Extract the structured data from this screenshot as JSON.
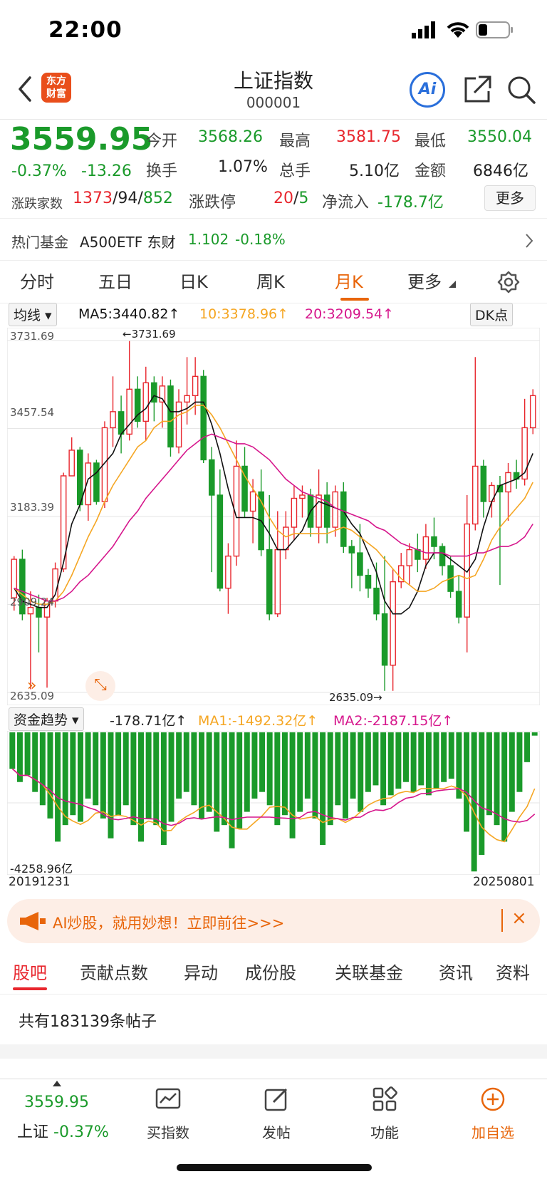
{
  "status_bar": {
    "time": "22:00"
  },
  "nav": {
    "title": "上证指数",
    "code": "000001",
    "logo": [
      "东方",
      "财富"
    ],
    "ai": "Ai"
  },
  "quote": {
    "price": "3559.95",
    "change_pct": "-0.37%",
    "change": "-13.26",
    "open_label": "今开",
    "open": "3568.26",
    "high_label": "最高",
    "high": "3581.75",
    "low_label": "最低",
    "low": "3550.04",
    "turnover_label": "换手",
    "turnover": "1.07%",
    "volume_label": "总手",
    "volume": "5.10亿",
    "amount_label": "金额",
    "amount": "6846亿",
    "breadth_label": "涨跌家数",
    "breadth_up": "1373",
    "breadth_flat": "94",
    "breadth_down": "852",
    "limit_label": "涨跌停",
    "limit_up": "20",
    "limit_down": "5",
    "inflow_label": "净流入",
    "inflow": "-178.7亿",
    "more": "更多"
  },
  "hot_fund": {
    "label": "热门基金",
    "name": "A500ETF 东财",
    "price": "1.102",
    "change": "-0.18%"
  },
  "chart_tabs": [
    "分时",
    "五日",
    "日K",
    "周K",
    "月K",
    "更多"
  ],
  "active_chart_tab": "月K",
  "ma_bar": {
    "selector": "均线",
    "ma5": "MA5:3440.82",
    "ma10": "10:3378.96",
    "ma20": "20:3209.54",
    "dk": "DK点"
  },
  "colors": {
    "up": "#e8262d",
    "down": "#1a9a2a",
    "ma5": "#111111",
    "ma10": "#f5a623",
    "ma20": "#d6168c",
    "accent": "#e8650a"
  },
  "chart_data": {
    "type": "candlestick",
    "y_ticks": [
      "3731.69",
      "3457.54",
      "3183.39",
      "2909.24",
      "2635.09"
    ],
    "ylim": [
      2635.09,
      3731.69
    ],
    "max_marker": "3731.69",
    "min_marker": "2635.09",
    "x_start": "20191231",
    "x_end": "20250801",
    "candles": [
      [
        2930,
        3050,
        2890,
        3060
      ],
      [
        3050,
        2880,
        2860,
        3080
      ],
      [
        2880,
        2900,
        2645,
        2950
      ],
      [
        2900,
        2870,
        2760,
        2940
      ],
      [
        2870,
        2920,
        2650,
        2930
      ],
      [
        2920,
        3020,
        2900,
        3040
      ],
      [
        3020,
        3310,
        3010,
        3320
      ],
      [
        3310,
        3390,
        3320,
        3430
      ],
      [
        3390,
        3220,
        3200,
        3400
      ],
      [
        3220,
        3350,
        3170,
        3380
      ],
      [
        3350,
        3230,
        3220,
        3360
      ],
      [
        3230,
        3460,
        3210,
        3480
      ],
      [
        3460,
        3510,
        3400,
        3620
      ],
      [
        3510,
        3440,
        3380,
        3560
      ],
      [
        3440,
        3580,
        3420,
        3730
      ],
      [
        3580,
        3480,
        3460,
        3620
      ],
      [
        3480,
        3600,
        3420,
        3650
      ],
      [
        3600,
        3540,
        3480,
        3620
      ],
      [
        3540,
        3590,
        3460,
        3620
      ],
      [
        3590,
        3400,
        3370,
        3610
      ],
      [
        3400,
        3540,
        3380,
        3580
      ],
      [
        3540,
        3560,
        3470,
        3680
      ],
      [
        3560,
        3620,
        3500,
        3680
      ],
      [
        3620,
        3360,
        3350,
        3640
      ],
      [
        3360,
        3250,
        3010,
        3400
      ],
      [
        3250,
        2960,
        2950,
        3330
      ],
      [
        2960,
        3060,
        2880,
        3100
      ],
      [
        3060,
        3340,
        3030,
        3420
      ],
      [
        3340,
        3200,
        3180,
        3400
      ],
      [
        3200,
        3260,
        3100,
        3300
      ],
      [
        3260,
        3080,
        3060,
        3330
      ],
      [
        3080,
        2880,
        2860,
        3250
      ],
      [
        2880,
        3080,
        2870,
        3200
      ],
      [
        3080,
        3150,
        3050,
        3200
      ],
      [
        3150,
        3240,
        3110,
        3280
      ],
      [
        3240,
        3250,
        3180,
        3280
      ],
      [
        3250,
        3150,
        3120,
        3270
      ],
      [
        3150,
        3250,
        3100,
        3330
      ],
      [
        3250,
        3150,
        3100,
        3290
      ],
      [
        3150,
        3260,
        3120,
        3280
      ],
      [
        3260,
        3090,
        3070,
        3290
      ],
      [
        3090,
        3070,
        2960,
        3110
      ],
      [
        3070,
        3000,
        2950,
        3160
      ],
      [
        3000,
        2960,
        2930,
        3020
      ],
      [
        2960,
        2880,
        2860,
        3040
      ],
      [
        2880,
        2720,
        2640,
        3060
      ],
      [
        2720,
        2980,
        2640,
        3020
      ],
      [
        2980,
        3030,
        2960,
        3070
      ],
      [
        3030,
        3080,
        2970,
        3100
      ],
      [
        3080,
        3050,
        3010,
        3130
      ],
      [
        3050,
        3120,
        3020,
        3160
      ],
      [
        3120,
        3090,
        3050,
        3180
      ],
      [
        3090,
        3030,
        3000,
        3100
      ],
      [
        3030,
        2950,
        2930,
        3060
      ],
      [
        2950,
        2870,
        2850,
        3000
      ],
      [
        2870,
        3160,
        2760,
        3250
      ],
      [
        3160,
        3340,
        3140,
        3680
      ],
      [
        3340,
        3230,
        3180,
        3360
      ],
      [
        3230,
        3280,
        3180,
        3290
      ],
      [
        3280,
        3260,
        2970,
        3310
      ],
      [
        3260,
        3320,
        3170,
        3350
      ],
      [
        3320,
        3300,
        3270,
        3360
      ],
      [
        3300,
        3460,
        3280,
        3550
      ],
      [
        3460,
        3560,
        3440,
        3580
      ]
    ],
    "series": [
      {
        "name": "MA5",
        "values": [
          2960,
          2920,
          2910,
          2900,
          2900,
          2940,
          3040,
          3160,
          3220,
          3300,
          3320,
          3350,
          3380,
          3440,
          3470,
          3500,
          3520,
          3560,
          3550,
          3510,
          3510,
          3520,
          3540,
          3540,
          3470,
          3380,
          3270,
          3180,
          3180,
          3180,
          3170,
          3130,
          3080,
          3080,
          3110,
          3140,
          3200,
          3230,
          3220,
          3210,
          3200,
          3160,
          3130,
          3070,
          3010,
          2920,
          2880,
          2880,
          2900,
          2950,
          3030,
          3070,
          3070,
          3050,
          3030,
          3010,
          3050,
          3150,
          3230,
          3280,
          3290,
          3300,
          3320,
          3380
        ]
      },
      {
        "name": "MA10",
        "values": [
          2960,
          2940,
          2920,
          2910,
          2910,
          2920,
          2950,
          3000,
          3060,
          3120,
          3170,
          3230,
          3280,
          3320,
          3360,
          3400,
          3420,
          3460,
          3480,
          3480,
          3500,
          3510,
          3530,
          3530,
          3500,
          3460,
          3410,
          3360,
          3310,
          3270,
          3230,
          3180,
          3140,
          3120,
          3130,
          3130,
          3130,
          3130,
          3130,
          3140,
          3150,
          3140,
          3120,
          3100,
          3080,
          3050,
          3020,
          2990,
          2970,
          2950,
          2950,
          2960,
          2980,
          2990,
          3000,
          2990,
          3000,
          3050,
          3110,
          3150,
          3180,
          3210,
          3240,
          3290
        ]
      },
      {
        "name": "MA20",
        "values": [
          2960,
          2950,
          2940,
          2930,
          2920,
          2920,
          2930,
          2950,
          2980,
          3000,
          3030,
          3060,
          3090,
          3130,
          3170,
          3200,
          3240,
          3270,
          3300,
          3330,
          3360,
          3390,
          3410,
          3430,
          3440,
          3430,
          3420,
          3410,
          3410,
          3400,
          3380,
          3360,
          3330,
          3300,
          3280,
          3260,
          3250,
          3240,
          3230,
          3210,
          3200,
          3190,
          3180,
          3170,
          3150,
          3140,
          3120,
          3100,
          3090,
          3080,
          3070,
          3070,
          3070,
          3060,
          3060,
          3060,
          3070,
          3070,
          3080,
          3090,
          3090,
          3100,
          3120,
          3160
        ]
      }
    ]
  },
  "fund_flow": {
    "selector": "资金趋势",
    "value": "-178.71亿",
    "ma1": "MA1:-1492.32亿",
    "ma2": "MA2:-2187.15亿",
    "min_label": "-4258.96亿",
    "bars": [
      -1100,
      -1500,
      -1300,
      -1800,
      -2200,
      -2600,
      -3300,
      -2800,
      -2500,
      -2700,
      -2000,
      -2200,
      -2600,
      -3200,
      -2500,
      -2200,
      -2800,
      -3300,
      -2600,
      -2800,
      -3400,
      -2700,
      -2000,
      -1800,
      -2200,
      -2600,
      -2400,
      -3000,
      -2800,
      -3500,
      -2900,
      -2400,
      -2000,
      -1800,
      -2200,
      -2800,
      -2500,
      -3200,
      -2400,
      -2000,
      -2600,
      -3400,
      -2800,
      -2200,
      -2600,
      -2000,
      -2400,
      -1800,
      -1600,
      -2200,
      -1900,
      -1700,
      -1500,
      -1800,
      -1600,
      -1900,
      -1700,
      -1500,
      -1400,
      -2000,
      -3000,
      -4200,
      -3700,
      -2500,
      -2800,
      -3300,
      -2400,
      -1800,
      -900,
      -100
    ]
  },
  "ad": {
    "text": "AI炒股，就用妙想！立即前往>>>"
  },
  "sub_tabs": [
    "股吧",
    "贡献点数",
    "异动",
    "成份股",
    "关联基金",
    "资讯",
    "资料"
  ],
  "posts": {
    "text": "共有183139条帖子"
  },
  "bottom_bar": {
    "price": "3559.95",
    "name": "上证",
    "change": "-0.37%",
    "items": [
      "买指数",
      "发帖",
      "功能",
      "加自选"
    ]
  }
}
